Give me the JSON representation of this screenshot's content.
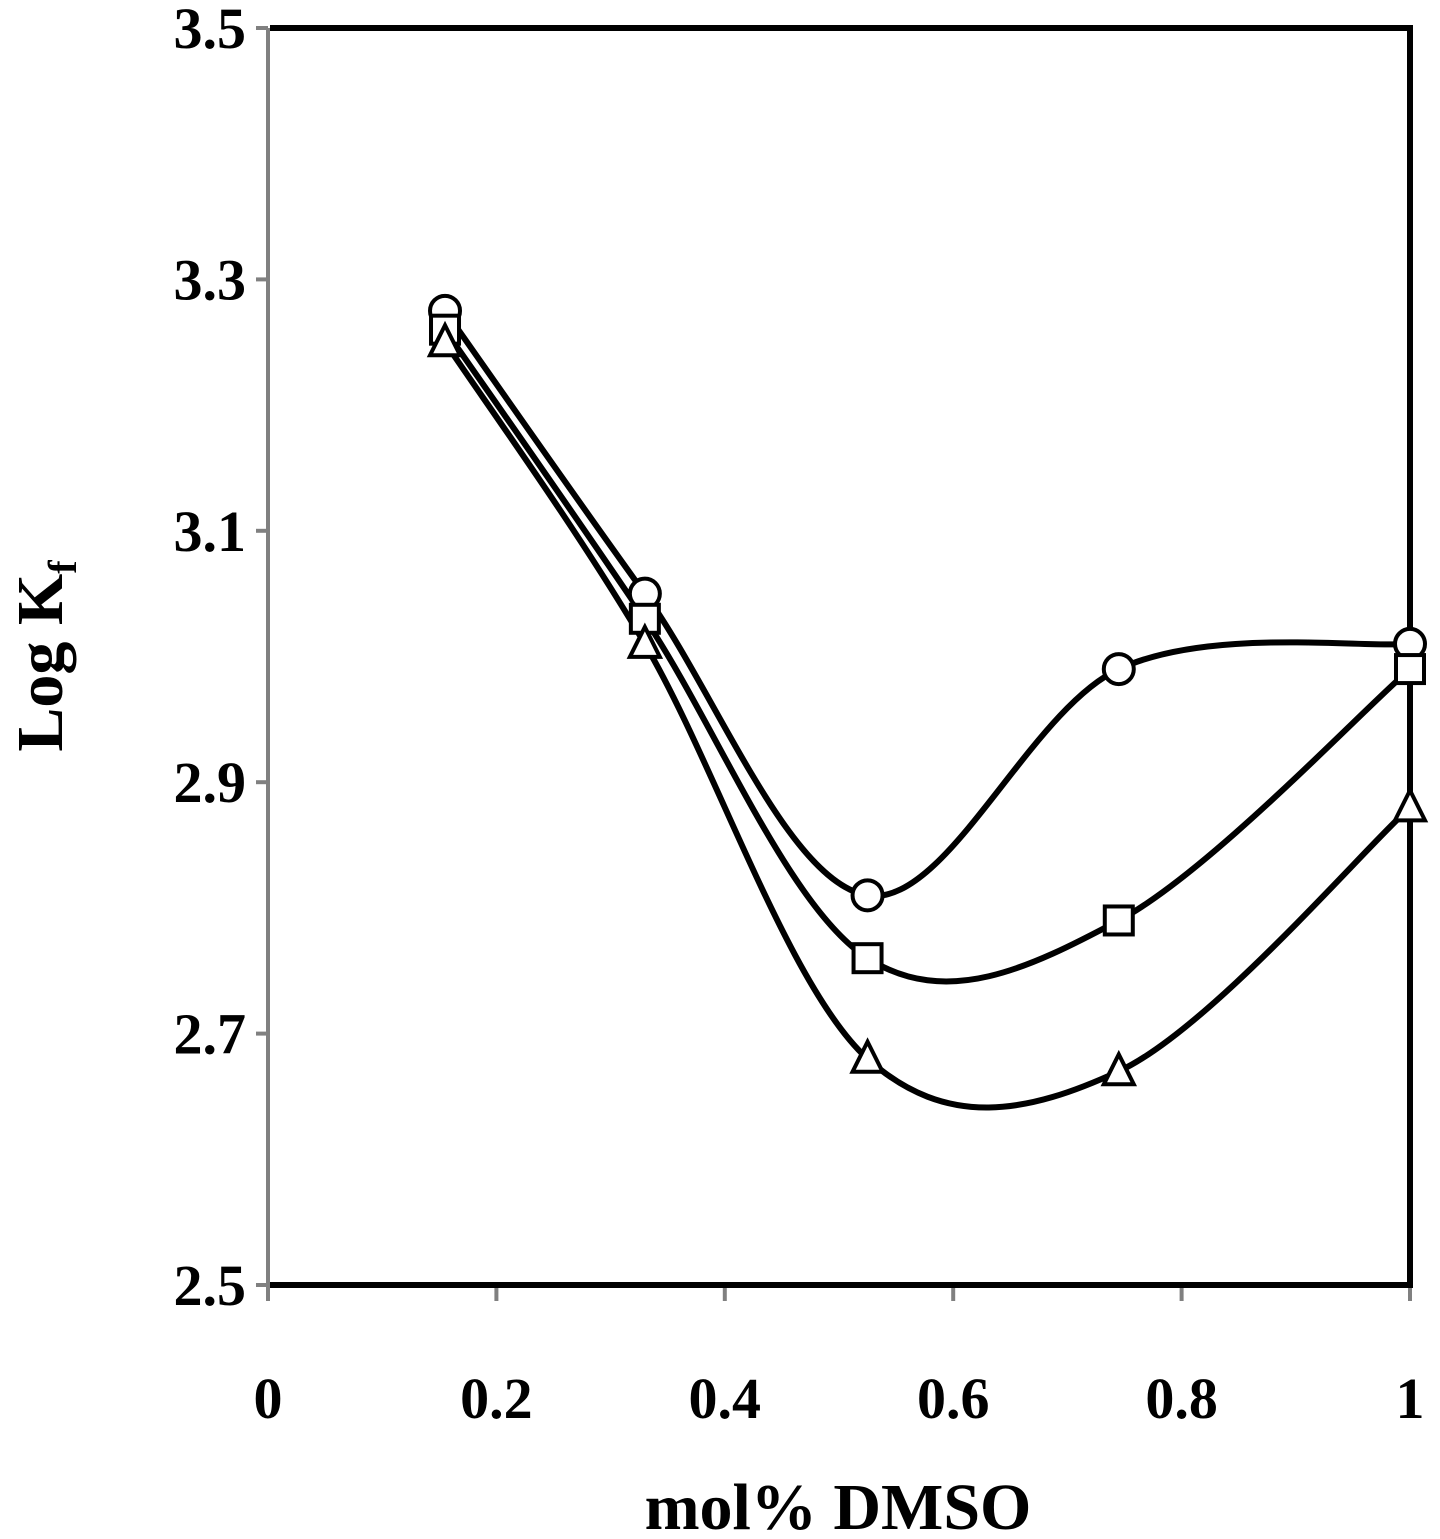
{
  "chart_data": {
    "type": "line",
    "title": "",
    "xlabel": "mol% DMSO",
    "ylabel": {
      "main": "Log K",
      "subscript": "f"
    },
    "xlim": [
      0,
      1
    ],
    "ylim": [
      2.5,
      3.5
    ],
    "xticks": [
      "0",
      "0.2",
      "0.4",
      "0.6",
      "0.8",
      "1"
    ],
    "yticks": [
      "2.5",
      "2.7",
      "2.9",
      "3.1",
      "3.3",
      "3.5"
    ],
    "grid": false,
    "legend": "none",
    "x": [
      0.155,
      0.33,
      0.525,
      0.745,
      1.0
    ],
    "series": [
      {
        "marker": "circle",
        "values": [
          3.275,
          3.05,
          2.81,
          2.99,
          3.01
        ]
      },
      {
        "marker": "square",
        "values": [
          3.26,
          3.03,
          2.76,
          2.79,
          2.99
        ]
      },
      {
        "marker": "triangle",
        "values": [
          3.25,
          3.01,
          2.68,
          2.67,
          2.88
        ]
      }
    ],
    "colors": {
      "line": "#000000",
      "marker_fill": "#ffffff",
      "axis": "#808080",
      "frame": "#000000"
    }
  }
}
